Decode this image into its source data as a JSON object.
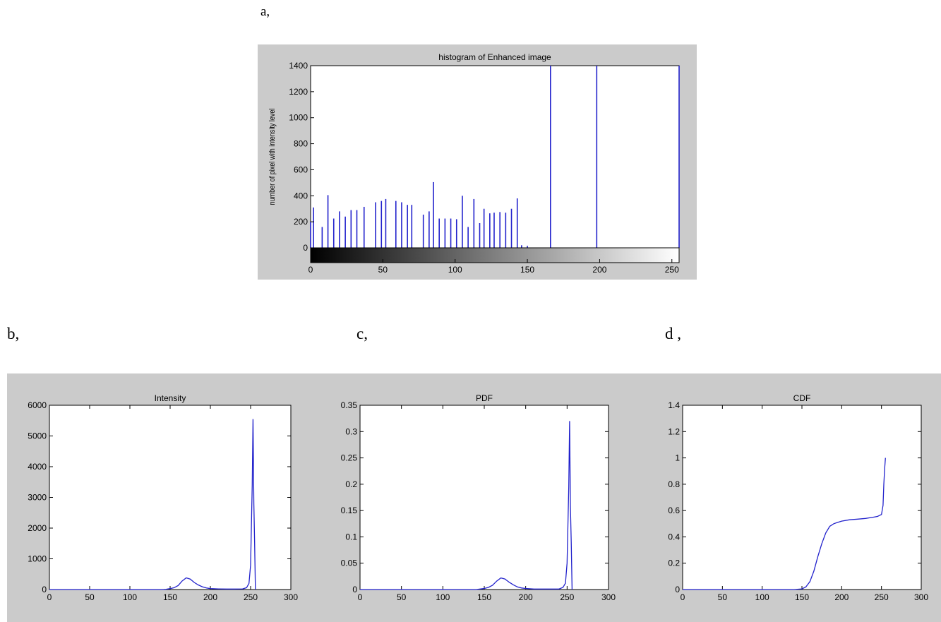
{
  "panel_labels": {
    "a": "a,",
    "b": "b,",
    "c": "c,",
    "d": "d ,"
  },
  "colors": {
    "figure_bg": "#cbcbcb",
    "axes_bg": "#ffffff",
    "line": "#2222cc"
  },
  "chart_data": [
    {
      "id": "a",
      "type": "bar",
      "title": "histogram of Enhanced image",
      "xlabel": "",
      "ylabel": "number of pixel with intensity level",
      "xlim": [
        0,
        255
      ],
      "ylim": [
        0,
        1400
      ],
      "xticks": [
        0,
        50,
        100,
        150,
        200,
        250
      ],
      "yticks": [
        0,
        200,
        400,
        600,
        800,
        1000,
        1200,
        1400
      ],
      "colorbar": "grayscale",
      "x": [
        0,
        2,
        8,
        12,
        16,
        20,
        24,
        28,
        32,
        37,
        45,
        49,
        52,
        59,
        63,
        67,
        70,
        78,
        82,
        85,
        89,
        93,
        97,
        101,
        105,
        109,
        113,
        117,
        120,
        124,
        127,
        131,
        135,
        139,
        143,
        146,
        150,
        166,
        198,
        255
      ],
      "values": [
        200,
        310,
        160,
        405,
        225,
        280,
        240,
        290,
        290,
        315,
        350,
        360,
        375,
        360,
        350,
        330,
        330,
        255,
        280,
        505,
        225,
        225,
        225,
        220,
        400,
        160,
        375,
        190,
        300,
        265,
        270,
        275,
        270,
        300,
        380,
        20,
        15,
        1400,
        1400,
        1400
      ]
    },
    {
      "id": "b",
      "type": "line",
      "title": "Intensity",
      "xlabel": "",
      "ylabel": "",
      "xlim": [
        0,
        300
      ],
      "ylim": [
        0,
        6000
      ],
      "xticks": [
        0,
        50,
        100,
        150,
        200,
        250,
        300
      ],
      "yticks": [
        0,
        1000,
        2000,
        3000,
        4000,
        5000,
        6000
      ],
      "x": [
        0,
        140,
        145,
        150,
        155,
        160,
        165,
        170,
        175,
        180,
        185,
        190,
        195,
        200,
        210,
        220,
        230,
        240,
        245,
        248,
        250,
        252,
        253,
        254,
        255,
        256
      ],
      "y": [
        0,
        0,
        10,
        30,
        60,
        130,
        280,
        380,
        340,
        230,
        150,
        90,
        50,
        30,
        20,
        15,
        15,
        20,
        60,
        200,
        800,
        3400,
        5550,
        2800,
        1500,
        0
      ]
    },
    {
      "id": "c",
      "type": "line",
      "title": "PDF",
      "xlabel": "",
      "ylabel": "",
      "xlim": [
        0,
        300
      ],
      "ylim": [
        0,
        0.35
      ],
      "xticks": [
        0,
        50,
        100,
        150,
        200,
        250,
        300
      ],
      "yticks": [
        0,
        0.05,
        0.1,
        0.15,
        0.2,
        0.25,
        0.3,
        0.35
      ],
      "x": [
        0,
        140,
        145,
        150,
        155,
        160,
        165,
        170,
        175,
        180,
        185,
        190,
        195,
        200,
        210,
        220,
        230,
        240,
        245,
        248,
        250,
        252,
        253,
        254,
        255,
        256
      ],
      "y": [
        0,
        0,
        0.001,
        0.002,
        0.004,
        0.008,
        0.016,
        0.022,
        0.02,
        0.014,
        0.009,
        0.005,
        0.003,
        0.002,
        0.001,
        0.001,
        0.001,
        0.001,
        0.004,
        0.012,
        0.05,
        0.195,
        0.32,
        0.16,
        0.09,
        0
      ]
    },
    {
      "id": "d",
      "type": "line",
      "title": "CDF",
      "xlabel": "",
      "ylabel": "",
      "xlim": [
        0,
        300
      ],
      "ylim": [
        0,
        1.4
      ],
      "xticks": [
        0,
        50,
        100,
        150,
        200,
        250,
        300
      ],
      "yticks": [
        0,
        0.2,
        0.4,
        0.6,
        0.8,
        1,
        1.2,
        1.4
      ],
      "x": [
        0,
        140,
        150,
        155,
        160,
        165,
        170,
        175,
        180,
        185,
        190,
        195,
        200,
        210,
        220,
        230,
        240,
        245,
        250,
        252,
        253,
        254,
        255
      ],
      "y": [
        0,
        0,
        0.005,
        0.02,
        0.06,
        0.14,
        0.25,
        0.35,
        0.43,
        0.48,
        0.5,
        0.51,
        0.52,
        0.53,
        0.535,
        0.54,
        0.55,
        0.555,
        0.57,
        0.64,
        0.8,
        0.92,
        1.0
      ]
    }
  ]
}
